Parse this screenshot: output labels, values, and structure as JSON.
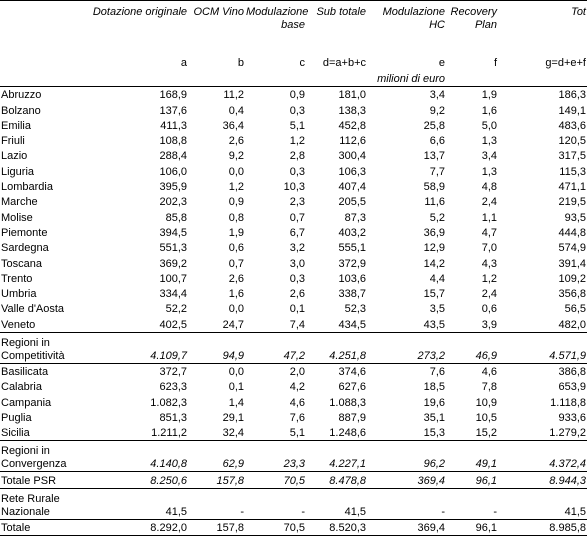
{
  "header": {
    "columns": [
      "Dotazione originale",
      "OCM Vino",
      "Modulazione base",
      "Sub totale",
      "Modulazione HC",
      "Recovery Plan",
      "Tot"
    ],
    "formulas": [
      "a",
      "b",
      "c",
      "d=a+b+c",
      "e",
      "f",
      "g=d+e+f"
    ],
    "unit": "milioni di euro"
  },
  "table": {
    "rows": [
      [
        "Abruzzo",
        "168,9",
        "11,2",
        "0,9",
        "181,0",
        "3,4",
        "1,9",
        "186,3"
      ],
      [
        "Bolzano",
        "137,6",
        "0,4",
        "0,3",
        "138,3",
        "9,2",
        "1,6",
        "149,1"
      ],
      [
        "Emilia",
        "411,3",
        "36,4",
        "5,1",
        "452,8",
        "25,8",
        "5,0",
        "483,6"
      ],
      [
        "Friuli",
        "108,8",
        "2,6",
        "1,2",
        "112,6",
        "6,6",
        "1,3",
        "120,5"
      ],
      [
        "Lazio",
        "288,4",
        "9,2",
        "2,8",
        "300,4",
        "13,7",
        "3,4",
        "317,5"
      ],
      [
        "Liguria",
        "106,0",
        "0,0",
        "0,3",
        "106,3",
        "7,7",
        "1,3",
        "115,3"
      ],
      [
        "Lombardia",
        "395,9",
        "1,2",
        "10,3",
        "407,4",
        "58,9",
        "4,8",
        "471,1"
      ],
      [
        "Marche",
        "202,3",
        "0,9",
        "2,3",
        "205,5",
        "11,6",
        "2,4",
        "219,5"
      ],
      [
        "Molise",
        "85,8",
        "0,8",
        "0,7",
        "87,3",
        "5,2",
        "1,1",
        "93,5"
      ],
      [
        "Piemonte",
        "394,5",
        "1,9",
        "6,7",
        "403,2",
        "36,9",
        "4,7",
        "444,8"
      ],
      [
        "Sardegna",
        "551,3",
        "0,6",
        "3,2",
        "555,1",
        "12,9",
        "7,0",
        "574,9"
      ],
      [
        "Toscana",
        "369,2",
        "0,7",
        "3,0",
        "372,9",
        "14,2",
        "4,3",
        "391,4"
      ],
      [
        "Trento",
        "100,7",
        "2,6",
        "0,3",
        "103,6",
        "4,4",
        "1,2",
        "109,2"
      ],
      [
        "Umbria",
        "334,4",
        "1,6",
        "2,6",
        "338,7",
        "15,7",
        "2,4",
        "356,8"
      ],
      [
        "Valle d'Aosta",
        "52,2",
        "0,0",
        "0,1",
        "52,3",
        "3,5",
        "0,6",
        "56,5"
      ],
      [
        "Veneto",
        "402,5",
        "24,7",
        "7,4",
        "434,5",
        "43,5",
        "3,9",
        "482,0"
      ],
      [
        "Regioni in Competitività",
        "4.109,7",
        "94,9",
        "47,2",
        "4.251,8",
        "273,2",
        "46,9",
        "4.571,9"
      ],
      [
        "Basilicata",
        "372,7",
        "0,0",
        "2,0",
        "374,6",
        "7,6",
        "4,6",
        "386,8"
      ],
      [
        "Calabria",
        "623,3",
        "0,1",
        "4,2",
        "627,6",
        "18,5",
        "7,8",
        "653,9"
      ],
      [
        "Campania",
        "1.082,3",
        "1,4",
        "4,6",
        "1.088,3",
        "19,6",
        "10,9",
        "1.118,8"
      ],
      [
        "Puglia",
        "851,3",
        "29,1",
        "7,6",
        "887,9",
        "35,1",
        "10,5",
        "933,6"
      ],
      [
        "Sicilia",
        "1.211,2",
        "32,4",
        "5,1",
        "1.248,6",
        "15,3",
        "15,2",
        "1.279,2"
      ],
      [
        "Regioni in Convergenza",
        "4.140,8",
        "62,9",
        "23,3",
        "4.227,1",
        "96,2",
        "49,1",
        "4.372,4"
      ],
      [
        "Totale PSR",
        "8.250,6",
        "157,8",
        "70,5",
        "8.478,8",
        "369,4",
        "96,1",
        "8.944,3"
      ],
      [
        "Rete Rurale Nazionale",
        "41,5",
        "-",
        "-",
        "41,5",
        "-",
        "-",
        "41,5"
      ],
      [
        "Totale",
        "8.292,0",
        "157,8",
        "70,5",
        "8.520,3",
        "369,4",
        "96,1",
        "8.985,8"
      ]
    ]
  }
}
